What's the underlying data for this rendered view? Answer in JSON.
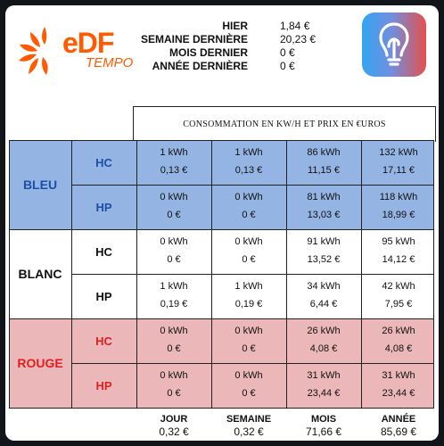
{
  "colors": {
    "brand_orange": "#ff5a00",
    "bleu_bg": "#94b4e4",
    "rouge_bg": "#ecb7b8",
    "bleu_text": "#1d4fa8",
    "rouge_text": "#e02020",
    "blanc_text": "#111111"
  },
  "logo": {
    "brand": "eDF",
    "sub": "TEMPO"
  },
  "summary": [
    {
      "label": "HIER",
      "value": "1,84 €"
    },
    {
      "label": "SEMAINE DERNIÈRE",
      "value": "20,23 €"
    },
    {
      "label": "MOIS DERNIER",
      "value": "0 €"
    },
    {
      "label": "ANNÉE DERNIÈRE",
      "value": "0 €"
    }
  ],
  "app_icon": "lightbulb-icon",
  "table": {
    "title": "CONSOMMATION EN KW/H ET PRIX EN €UROS",
    "groups": [
      {
        "name": "BLEU",
        "rows": [
          {
            "tariff": "HC",
            "values": [
              [
                "1 kWh",
                "0,13 €"
              ],
              [
                "1 kWh",
                "0,13 €"
              ],
              [
                "86 kWh",
                "11,15 €"
              ],
              [
                "132 kWh",
                "17,11 €"
              ]
            ]
          },
          {
            "tariff": "HP",
            "values": [
              [
                "0 kWh",
                "0 €"
              ],
              [
                "0 kWh",
                "0 €"
              ],
              [
                "81 kWh",
                "13,03 €"
              ],
              [
                "118 kWh",
                "18,99 €"
              ]
            ]
          }
        ]
      },
      {
        "name": "BLANC",
        "rows": [
          {
            "tariff": "HC",
            "values": [
              [
                "0 kWh",
                "0 €"
              ],
              [
                "0 kWh",
                "0 €"
              ],
              [
                "91 kWh",
                "13,52 €"
              ],
              [
                "95 kWh",
                "14,12 €"
              ]
            ]
          },
          {
            "tariff": "HP",
            "values": [
              [
                "1 kWh",
                "0,19 €"
              ],
              [
                "1 kWh",
                "0,19 €"
              ],
              [
                "34 kWh",
                "6,44 €"
              ],
              [
                "42 kWh",
                "7,95 €"
              ]
            ]
          }
        ]
      },
      {
        "name": "ROUGE",
        "rows": [
          {
            "tariff": "HC",
            "values": [
              [
                "0 kWh",
                "0 €"
              ],
              [
                "0 kWh",
                "0 €"
              ],
              [
                "26 kWh",
                "4,08 €"
              ],
              [
                "26 kWh",
                "4,08 €"
              ]
            ]
          },
          {
            "tariff": "HP",
            "values": [
              [
                "0 kWh",
                "0 €"
              ],
              [
                "0 kWh",
                "0 €"
              ],
              [
                "31 kWh",
                "23,44 €"
              ],
              [
                "31 kWh",
                "23,44 €"
              ]
            ]
          }
        ]
      }
    ],
    "totals": [
      {
        "label": "JOUR",
        "value": "0,32 €"
      },
      {
        "label": "SEMAINE",
        "value": "0,32 €"
      },
      {
        "label": "MOIS",
        "value": "71,66 €"
      },
      {
        "label": "ANNÉE",
        "value": "85,69 €"
      }
    ]
  }
}
